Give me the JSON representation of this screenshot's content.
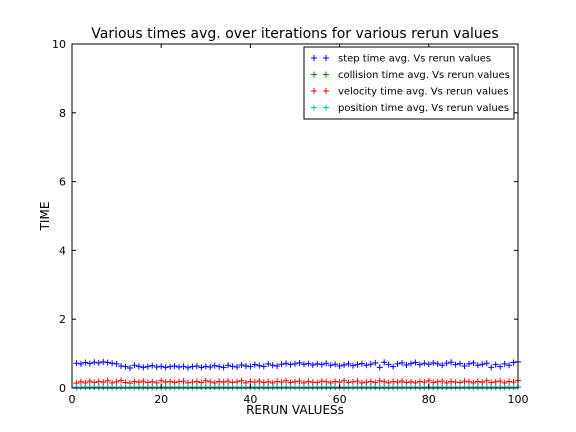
{
  "chart_data": {
    "type": "scatter",
    "title": "Various times avg. over iterations for various rerun values",
    "xlabel": "RERUN VALUESs",
    "ylabel": "TIME",
    "xlim": [
      0,
      100
    ],
    "ylim": [
      0,
      10
    ],
    "x_ticks": [
      0,
      20,
      40,
      60,
      80,
      100
    ],
    "y_ticks": [
      0,
      2,
      4,
      6,
      8,
      10
    ],
    "grid": false,
    "legend_position": "top-right",
    "marker": "+",
    "x": [
      1,
      2,
      3,
      4,
      5,
      6,
      7,
      8,
      9,
      10,
      11,
      12,
      13,
      14,
      15,
      16,
      17,
      18,
      19,
      20,
      21,
      22,
      23,
      24,
      25,
      26,
      27,
      28,
      29,
      30,
      31,
      32,
      33,
      34,
      35,
      36,
      37,
      38,
      39,
      40,
      41,
      42,
      43,
      44,
      45,
      46,
      47,
      48,
      49,
      50,
      51,
      52,
      53,
      54,
      55,
      56,
      57,
      58,
      59,
      60,
      61,
      62,
      63,
      64,
      65,
      66,
      67,
      68,
      69,
      70,
      71,
      72,
      73,
      74,
      75,
      76,
      77,
      78,
      79,
      80,
      81,
      82,
      83,
      84,
      85,
      86,
      87,
      88,
      89,
      90,
      91,
      92,
      93,
      94,
      95,
      96,
      97,
      98,
      99,
      100
    ],
    "series": [
      {
        "name": "step time avg. Vs rerun values",
        "color": "#0000ff",
        "values": [
          0.72,
          0.7,
          0.74,
          0.71,
          0.75,
          0.73,
          0.76,
          0.74,
          0.72,
          0.7,
          0.64,
          0.62,
          0.58,
          0.66,
          0.63,
          0.6,
          0.62,
          0.65,
          0.61,
          0.63,
          0.6,
          0.62,
          0.64,
          0.61,
          0.63,
          0.59,
          0.62,
          0.64,
          0.6,
          0.63,
          0.61,
          0.65,
          0.62,
          0.6,
          0.66,
          0.63,
          0.61,
          0.67,
          0.64,
          0.62,
          0.68,
          0.65,
          0.63,
          0.7,
          0.66,
          0.64,
          0.69,
          0.72,
          0.68,
          0.7,
          0.73,
          0.69,
          0.71,
          0.67,
          0.7,
          0.68,
          0.72,
          0.66,
          0.69,
          0.64,
          0.67,
          0.7,
          0.65,
          0.68,
          0.71,
          0.66,
          0.69,
          0.73,
          0.6,
          0.75,
          0.68,
          0.62,
          0.7,
          0.73,
          0.67,
          0.71,
          0.74,
          0.68,
          0.72,
          0.69,
          0.73,
          0.7,
          0.66,
          0.72,
          0.75,
          0.68,
          0.71,
          0.64,
          0.7,
          0.73,
          0.66,
          0.69,
          0.72,
          0.6,
          0.68,
          0.62,
          0.7,
          0.66,
          0.74,
          0.76
        ]
      },
      {
        "name": "collision time avg. Vs rerun values",
        "color": "#008000",
        "values": [
          0.02,
          0.02,
          0.02,
          0.02,
          0.02,
          0.02,
          0.02,
          0.02,
          0.02,
          0.02,
          0.02,
          0.02,
          0.02,
          0.02,
          0.02,
          0.02,
          0.02,
          0.02,
          0.02,
          0.02,
          0.02,
          0.02,
          0.02,
          0.02,
          0.02,
          0.02,
          0.02,
          0.02,
          0.02,
          0.02,
          0.02,
          0.02,
          0.02,
          0.02,
          0.02,
          0.02,
          0.02,
          0.02,
          0.02,
          0.02,
          0.02,
          0.02,
          0.02,
          0.02,
          0.02,
          0.02,
          0.02,
          0.02,
          0.02,
          0.02,
          0.02,
          0.02,
          0.02,
          0.02,
          0.02,
          0.02,
          0.02,
          0.02,
          0.02,
          0.02,
          0.02,
          0.02,
          0.02,
          0.02,
          0.02,
          0.02,
          0.02,
          0.02,
          0.02,
          0.02,
          0.02,
          0.02,
          0.02,
          0.02,
          0.02,
          0.02,
          0.02,
          0.02,
          0.02,
          0.02,
          0.02,
          0.02,
          0.02,
          0.02,
          0.02,
          0.02,
          0.02,
          0.02,
          0.02,
          0.02,
          0.02,
          0.02,
          0.02,
          0.02,
          0.02,
          0.02,
          0.02,
          0.02,
          0.02,
          0.02
        ]
      },
      {
        "name": "velocity time avg. Vs rerun values",
        "color": "#ff0000",
        "values": [
          0.14,
          0.18,
          0.15,
          0.2,
          0.16,
          0.19,
          0.17,
          0.21,
          0.15,
          0.18,
          0.22,
          0.16,
          0.14,
          0.19,
          0.17,
          0.2,
          0.16,
          0.18,
          0.15,
          0.21,
          0.17,
          0.19,
          0.16,
          0.18,
          0.2,
          0.15,
          0.17,
          0.19,
          0.16,
          0.21,
          0.18,
          0.15,
          0.19,
          0.17,
          0.2,
          0.16,
          0.18,
          0.21,
          0.15,
          0.19,
          0.17,
          0.2,
          0.16,
          0.18,
          0.15,
          0.19,
          0.17,
          0.21,
          0.16,
          0.18,
          0.2,
          0.15,
          0.19,
          0.17,
          0.16,
          0.2,
          0.18,
          0.15,
          0.19,
          0.17,
          0.21,
          0.16,
          0.18,
          0.2,
          0.15,
          0.17,
          0.19,
          0.16,
          0.21,
          0.18,
          0.15,
          0.19,
          0.17,
          0.2,
          0.16,
          0.18,
          0.15,
          0.19,
          0.17,
          0.21,
          0.16,
          0.18,
          0.2,
          0.15,
          0.19,
          0.17,
          0.16,
          0.2,
          0.18,
          0.15,
          0.19,
          0.17,
          0.21,
          0.16,
          0.18,
          0.2,
          0.15,
          0.19,
          0.17,
          0.22
        ]
      },
      {
        "name": "position time avg. Vs rerun values",
        "color": "#00bfbf",
        "values": [
          0.03,
          0.03,
          0.03,
          0.03,
          0.03,
          0.03,
          0.03,
          0.03,
          0.03,
          0.03,
          0.03,
          0.03,
          0.03,
          0.03,
          0.03,
          0.03,
          0.03,
          0.03,
          0.03,
          0.03,
          0.03,
          0.03,
          0.03,
          0.03,
          0.03,
          0.03,
          0.03,
          0.03,
          0.03,
          0.03,
          0.03,
          0.03,
          0.03,
          0.03,
          0.03,
          0.03,
          0.03,
          0.03,
          0.03,
          0.03,
          0.03,
          0.03,
          0.03,
          0.03,
          0.03,
          0.03,
          0.03,
          0.03,
          0.03,
          0.03,
          0.03,
          0.03,
          0.03,
          0.03,
          0.03,
          0.03,
          0.03,
          0.03,
          0.03,
          0.03,
          0.03,
          0.03,
          0.03,
          0.03,
          0.03,
          0.03,
          0.03,
          0.03,
          0.03,
          0.03,
          0.03,
          0.03,
          0.03,
          0.03,
          0.03,
          0.03,
          0.03,
          0.03,
          0.03,
          0.03,
          0.03,
          0.03,
          0.03,
          0.03,
          0.03,
          0.03,
          0.03,
          0.03,
          0.03,
          0.03,
          0.03,
          0.03,
          0.03,
          0.03,
          0.03,
          0.03,
          0.03,
          0.03,
          0.03,
          0.03
        ]
      }
    ]
  }
}
